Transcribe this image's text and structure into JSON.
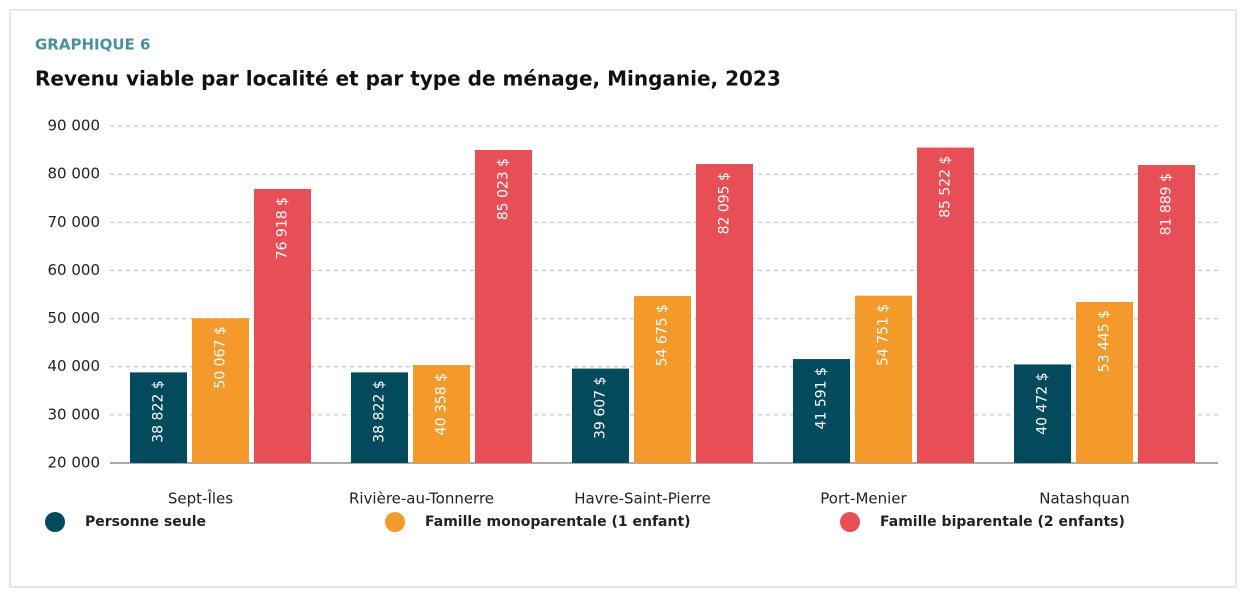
{
  "chart_data": {
    "type": "bar",
    "kicker": "GRAPHIQUE 6",
    "title": "Revenu viable par localité et par type de ménage, Minganie, 2023",
    "categories": [
      "Sept-Îles",
      "Rivière-au-Tonnerre",
      "Havre-Saint-Pierre",
      "Port-Menier",
      "Natashquan"
    ],
    "series": [
      {
        "name": "Personne seule",
        "color": "#034a5c",
        "values": [
          38822,
          38822,
          39607,
          41591,
          40472
        ],
        "value_labels": [
          "38 822 $",
          "38 822 $",
          "39 607 $",
          "41 591 $",
          "40 472 $"
        ]
      },
      {
        "name": "Famille monoparentale (1 enfant)",
        "color": "#f39a2a",
        "values": [
          50067,
          40358,
          54675,
          54751,
          53445
        ],
        "value_labels": [
          "50 067 $",
          "40 358 $",
          "54 675 $",
          "54 751 $",
          "53 445 $"
        ]
      },
      {
        "name": "Famille biparentale (2 enfants)",
        "color": "#e84e55",
        "values": [
          76918,
          85023,
          82095,
          85522,
          81889
        ],
        "value_labels": [
          "76 918 $",
          "85 023 $",
          "82 095 $",
          "85 522 $",
          "81 889 $"
        ]
      }
    ],
    "ylim": [
      20000,
      90000
    ],
    "yticks": [
      {
        "value": 20000,
        "label": "20 000"
      },
      {
        "value": 30000,
        "label": "30 000"
      },
      {
        "value": 40000,
        "label": "40 000"
      },
      {
        "value": 50000,
        "label": "50 000"
      },
      {
        "value": 60000,
        "label": "60 000"
      },
      {
        "value": 70000,
        "label": "70 000"
      },
      {
        "value": 80000,
        "label": "80 000"
      },
      {
        "value": 90000,
        "label": "90 000"
      }
    ],
    "grid": true
  }
}
